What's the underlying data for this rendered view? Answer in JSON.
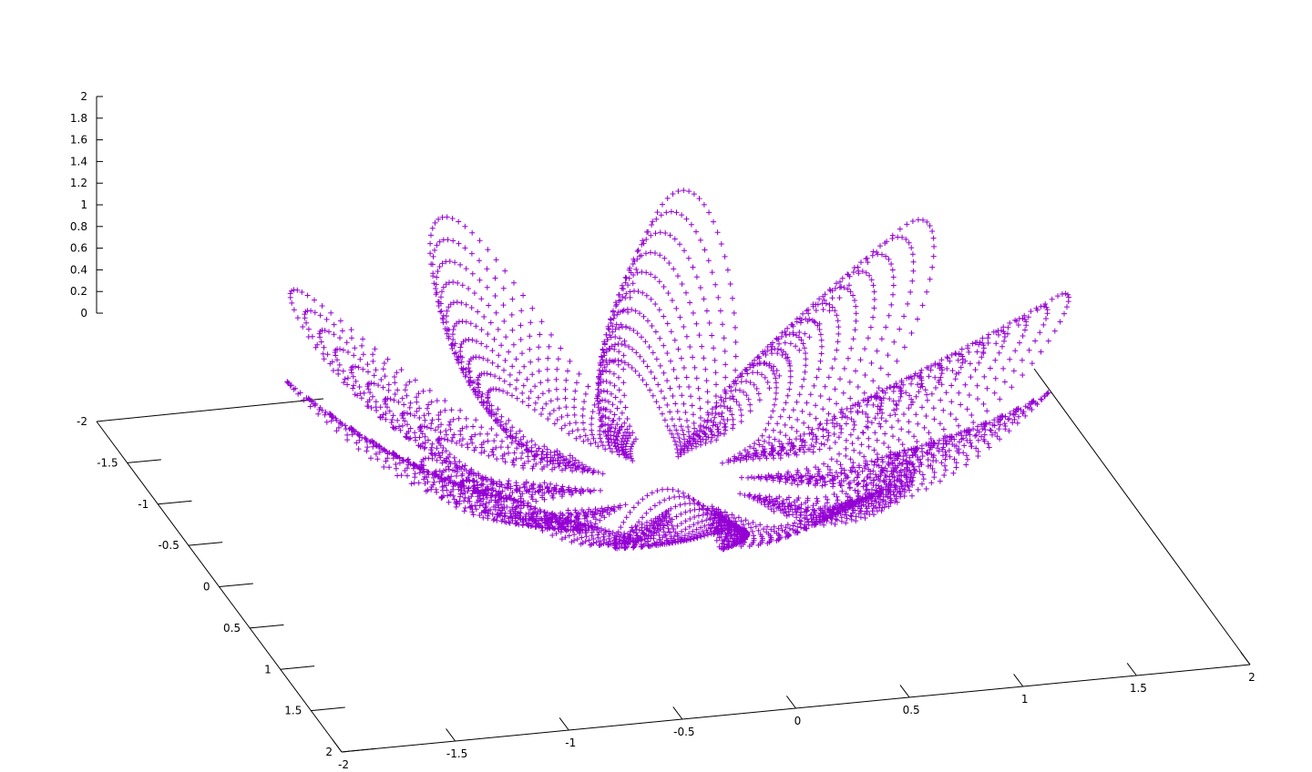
{
  "chart_data": {
    "type": "scatter",
    "plot_style": "gnuplot splot, 3D",
    "marker": "+",
    "series": [
      {
        "color": "#9400D3",
        "curve": {
          "kind": "spirograph_bowl",
          "petals": 10,
          "turns": 40,
          "R": 1.0,
          "r": 0.82,
          "z_mode": "r_squared_based",
          "samples": 4800
        }
      }
    ],
    "x_axis": {
      "range": [
        -2,
        2
      ],
      "ticks": [
        "-2",
        "-1.5",
        "-1",
        "-0.5",
        "0",
        "0.5",
        "1",
        "1.5",
        "2"
      ]
    },
    "y_axis": {
      "range": [
        -2,
        2
      ],
      "ticks": [
        "-2",
        "-1.5",
        "-1",
        "-0.5",
        "0",
        "0.5",
        "1",
        "1.5",
        "2"
      ]
    },
    "z_axis": {
      "range": [
        0,
        2
      ],
      "ticks": [
        "0",
        "0.2",
        "0.4",
        "0.6",
        "0.8",
        "1",
        "1.2",
        "1.4",
        "1.6",
        "1.8",
        "2"
      ]
    },
    "grid": false,
    "legend": "none"
  }
}
